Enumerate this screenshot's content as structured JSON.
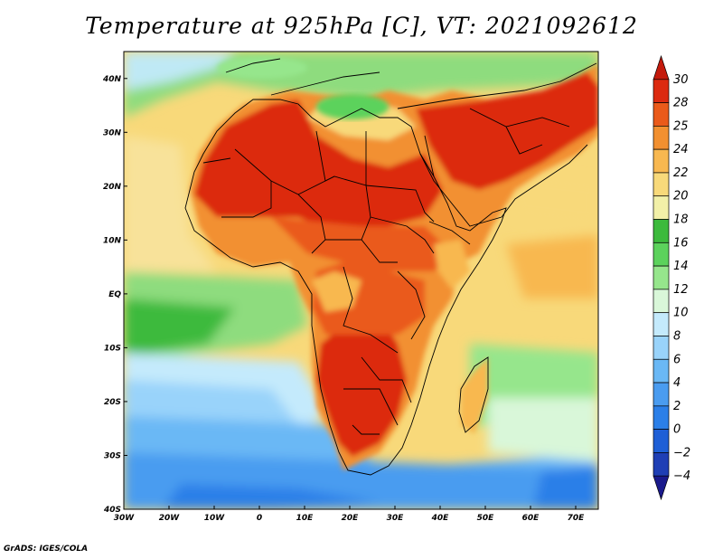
{
  "title": "Temperature at 925hPa [C], VT: 2021092612",
  "credit": "GrADS: IGES/COLA",
  "map": {
    "lon_range": [
      -30,
      75
    ],
    "lat_range": [
      -40,
      45
    ],
    "x_ticks": [
      {
        "lon": -30,
        "label": "30W"
      },
      {
        "lon": -20,
        "label": "20W"
      },
      {
        "lon": -10,
        "label": "10W"
      },
      {
        "lon": 0,
        "label": "0"
      },
      {
        "lon": 10,
        "label": "10E"
      },
      {
        "lon": 20,
        "label": "20E"
      },
      {
        "lon": 30,
        "label": "30E"
      },
      {
        "lon": 40,
        "label": "40E"
      },
      {
        "lon": 50,
        "label": "50E"
      },
      {
        "lon": 60,
        "label": "60E"
      },
      {
        "lon": 70,
        "label": "70E"
      }
    ],
    "y_ticks": [
      {
        "lat": 40,
        "label": "40N"
      },
      {
        "lat": 30,
        "label": "30N"
      },
      {
        "lat": 20,
        "label": "20N"
      },
      {
        "lat": 10,
        "label": "10N"
      },
      {
        "lat": 0,
        "label": "EQ"
      },
      {
        "lat": -10,
        "label": "10S"
      },
      {
        "lat": -20,
        "label": "20S"
      },
      {
        "lat": -30,
        "label": "30S"
      },
      {
        "lat": -40,
        "label": "40S"
      }
    ]
  },
  "colorbar": {
    "levels": [
      "-4",
      "-2",
      "0",
      "2",
      "4",
      "6",
      "8",
      "10",
      "12",
      "14",
      "16",
      "18",
      "20",
      "22",
      "24",
      "25",
      "28",
      "30"
    ],
    "colors": [
      "#1a1a8c",
      "#1f3fb5",
      "#1e5fd6",
      "#2b7fe8",
      "#4a9cf0",
      "#6ab8f5",
      "#99d3fa",
      "#c4eafc",
      "#d9f7d9",
      "#96e68c",
      "#5cd25c",
      "#3cba3c",
      "#f2f0a8",
      "#f8d97a",
      "#f8b850",
      "#f29030",
      "#ea5a1a",
      "#dc2a10",
      "#c41a0c"
    ]
  }
}
